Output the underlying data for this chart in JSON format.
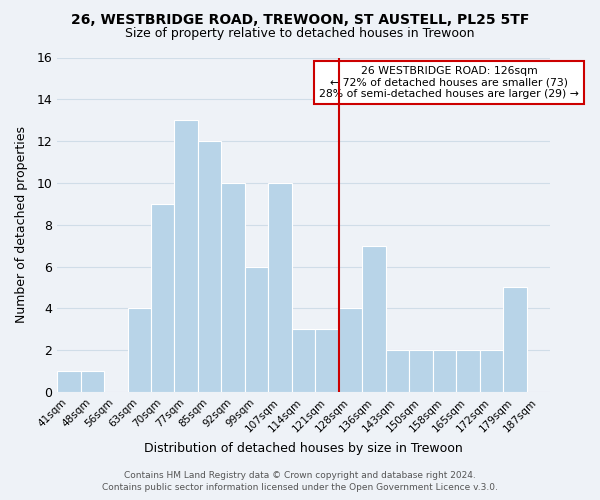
{
  "title": "26, WESTBRIDGE ROAD, TREWOON, ST AUSTELL, PL25 5TF",
  "subtitle": "Size of property relative to detached houses in Trewoon",
  "xlabel": "Distribution of detached houses by size in Trewoon",
  "ylabel": "Number of detached properties",
  "bins": [
    "41sqm",
    "48sqm",
    "56sqm",
    "63sqm",
    "70sqm",
    "77sqm",
    "85sqm",
    "92sqm",
    "99sqm",
    "107sqm",
    "114sqm",
    "121sqm",
    "128sqm",
    "136sqm",
    "143sqm",
    "150sqm",
    "158sqm",
    "165sqm",
    "172sqm",
    "179sqm",
    "187sqm"
  ],
  "values": [
    1,
    1,
    0,
    4,
    9,
    13,
    12,
    10,
    6,
    10,
    3,
    3,
    4,
    7,
    2,
    2,
    2,
    2,
    2,
    5,
    0
  ],
  "bar_color": "#b8d4e8",
  "bar_edge_color": "#ffffff",
  "subject_line_color": "#cc0000",
  "subject_line_bin_index": 12,
  "annotation_title": "26 WESTBRIDGE ROAD: 126sqm",
  "annotation_line1": "← 72% of detached houses are smaller (73)",
  "annotation_line2": "28% of semi-detached houses are larger (29) →",
  "annotation_box_color": "#ffffff",
  "annotation_box_edge_color": "#cc0000",
  "footer1": "Contains HM Land Registry data © Crown copyright and database right 2024.",
  "footer2": "Contains public sector information licensed under the Open Government Licence v.3.0.",
  "ylim": [
    0,
    16
  ],
  "yticks": [
    0,
    2,
    4,
    6,
    8,
    10,
    12,
    14,
    16
  ],
  "grid_color": "#d0dde8",
  "background_color": "#eef2f7"
}
